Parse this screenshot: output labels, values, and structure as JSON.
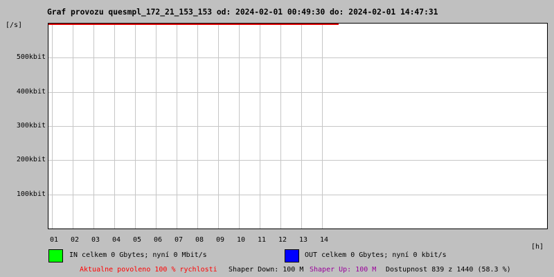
{
  "window": {
    "title": "Graf provozu quesmpl_172_21_153_153 od: 2024-02-01 00:49:30 do: 2024-02-01 14:47:31"
  },
  "axes": {
    "y_unit": "[/s]",
    "x_unit": "[h]"
  },
  "chart_data": {
    "type": "line",
    "title": "Graf provozu quesmpl_172_21_153_153",
    "time_from": "2024-02-01 00:49:30",
    "time_to": "2024-02-01 14:47:31",
    "x_ticks": [
      "01",
      "02",
      "03",
      "04",
      "05",
      "06",
      "07",
      "08",
      "09",
      "10",
      "11",
      "12",
      "13",
      "14"
    ],
    "x_start_hour": 0.825,
    "x_span_hours": 24,
    "x_data_end_hour": 14.792,
    "ylim": [
      0,
      600000
    ],
    "y_ticks": [
      {
        "label": "500kbit",
        "value": 500000
      },
      {
        "label": "400kbit",
        "value": 400000
      },
      {
        "label": "300kbit",
        "value": 300000
      },
      {
        "label": "200kbit",
        "value": 200000
      },
      {
        "label": "100kbit",
        "value": 100000
      }
    ],
    "grid": true,
    "legend_position": "bottom",
    "series": [
      {
        "name": "IN",
        "color": "#00ff00",
        "values": [
          0
        ],
        "note": "flat at zero, not visible"
      },
      {
        "name": "OUT",
        "color": "#0000ff",
        "values": [
          0
        ],
        "note": "flat at zero, not visible"
      },
      {
        "name": "allowed speed 100%",
        "color": "#dd0000",
        "note": "horizontal line at top of plot from start to 14:47"
      }
    ]
  },
  "legend": {
    "in": {
      "color": "#00ff00",
      "label": "IN celkem 0 Gbytes; nyní 0 Mbit/s"
    },
    "out": {
      "color": "#0000ff",
      "label": "OUT celkem 0 Gbytes; nyní 0 kbit/s"
    }
  },
  "status_bar": {
    "allowed": {
      "text": "Aktualne povoleno 100 % rychlosti",
      "color": "#ff0000"
    },
    "shaper_down": {
      "text": "Shaper Down: 100 M",
      "color": "#000000"
    },
    "shaper_up": {
      "text": "Shaper Up: 100 M",
      "color": "#990099"
    },
    "availability": {
      "text": "Dostupnost 839 z 1440 (58.3 %)",
      "color": "#000000"
    }
  },
  "colors": {
    "background": "#c0c0c0",
    "plot_background": "#ffffff",
    "grid": "#c6c6c6",
    "border": "#000000",
    "max_line": "#dd0000"
  }
}
